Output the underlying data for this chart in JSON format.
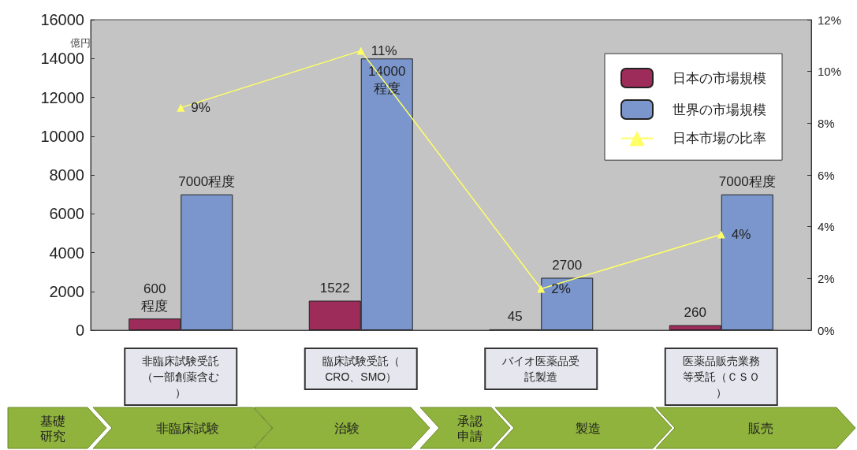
{
  "chart_data": {
    "type": "bar",
    "ylabel": "億円",
    "categories": [
      "非臨床試験受託（一部創薬含む）",
      "臨床試験受託（CRO、SMO）",
      "バイオ医薬品受託製造",
      "医薬品販売業務等受託（ＣＳＯ）"
    ],
    "series": [
      {
        "name": "日本の市場規模",
        "color": "#9e2c5a",
        "values": [
          600,
          1522,
          45,
          260
        ],
        "value_labels": [
          "600\n程度",
          "1522",
          "45",
          "260"
        ]
      },
      {
        "name": "世界の市場規模",
        "color": "#7b96cc",
        "values": [
          7000,
          14000,
          2700,
          7000
        ],
        "value_labels": [
          "7000程度",
          "14000\n程度",
          "2700",
          "7000程度"
        ]
      },
      {
        "name": "日本市場の比率",
        "type": "line",
        "axis": "y2",
        "marker": "triangle",
        "color": "#ffff66",
        "values": [
          8.6,
          10.8,
          1.6,
          3.7
        ],
        "value_labels": [
          "9%",
          "11%",
          "2%",
          "4%"
        ]
      }
    ],
    "ylim": [
      0,
      16000
    ],
    "yticks": [
      0,
      2000,
      4000,
      6000,
      8000,
      10000,
      12000,
      14000,
      16000
    ],
    "y2lim": [
      0,
      12
    ],
    "y2ticks": [
      {
        "value": 0,
        "label": "0%"
      },
      {
        "value": 2,
        "label": "2%"
      },
      {
        "value": 4,
        "label": "4%"
      },
      {
        "value": 6,
        "label": "6%"
      },
      {
        "value": 8,
        "label": "8%"
      },
      {
        "value": 10,
        "label": "10%"
      },
      {
        "value": 12,
        "label": "12%"
      }
    ],
    "grid": false,
    "legend": "top right",
    "annotations": [
      "基礎研究",
      "非臨床試験",
      "治験",
      "承認申請",
      "製造",
      "販売"
    ]
  }
}
